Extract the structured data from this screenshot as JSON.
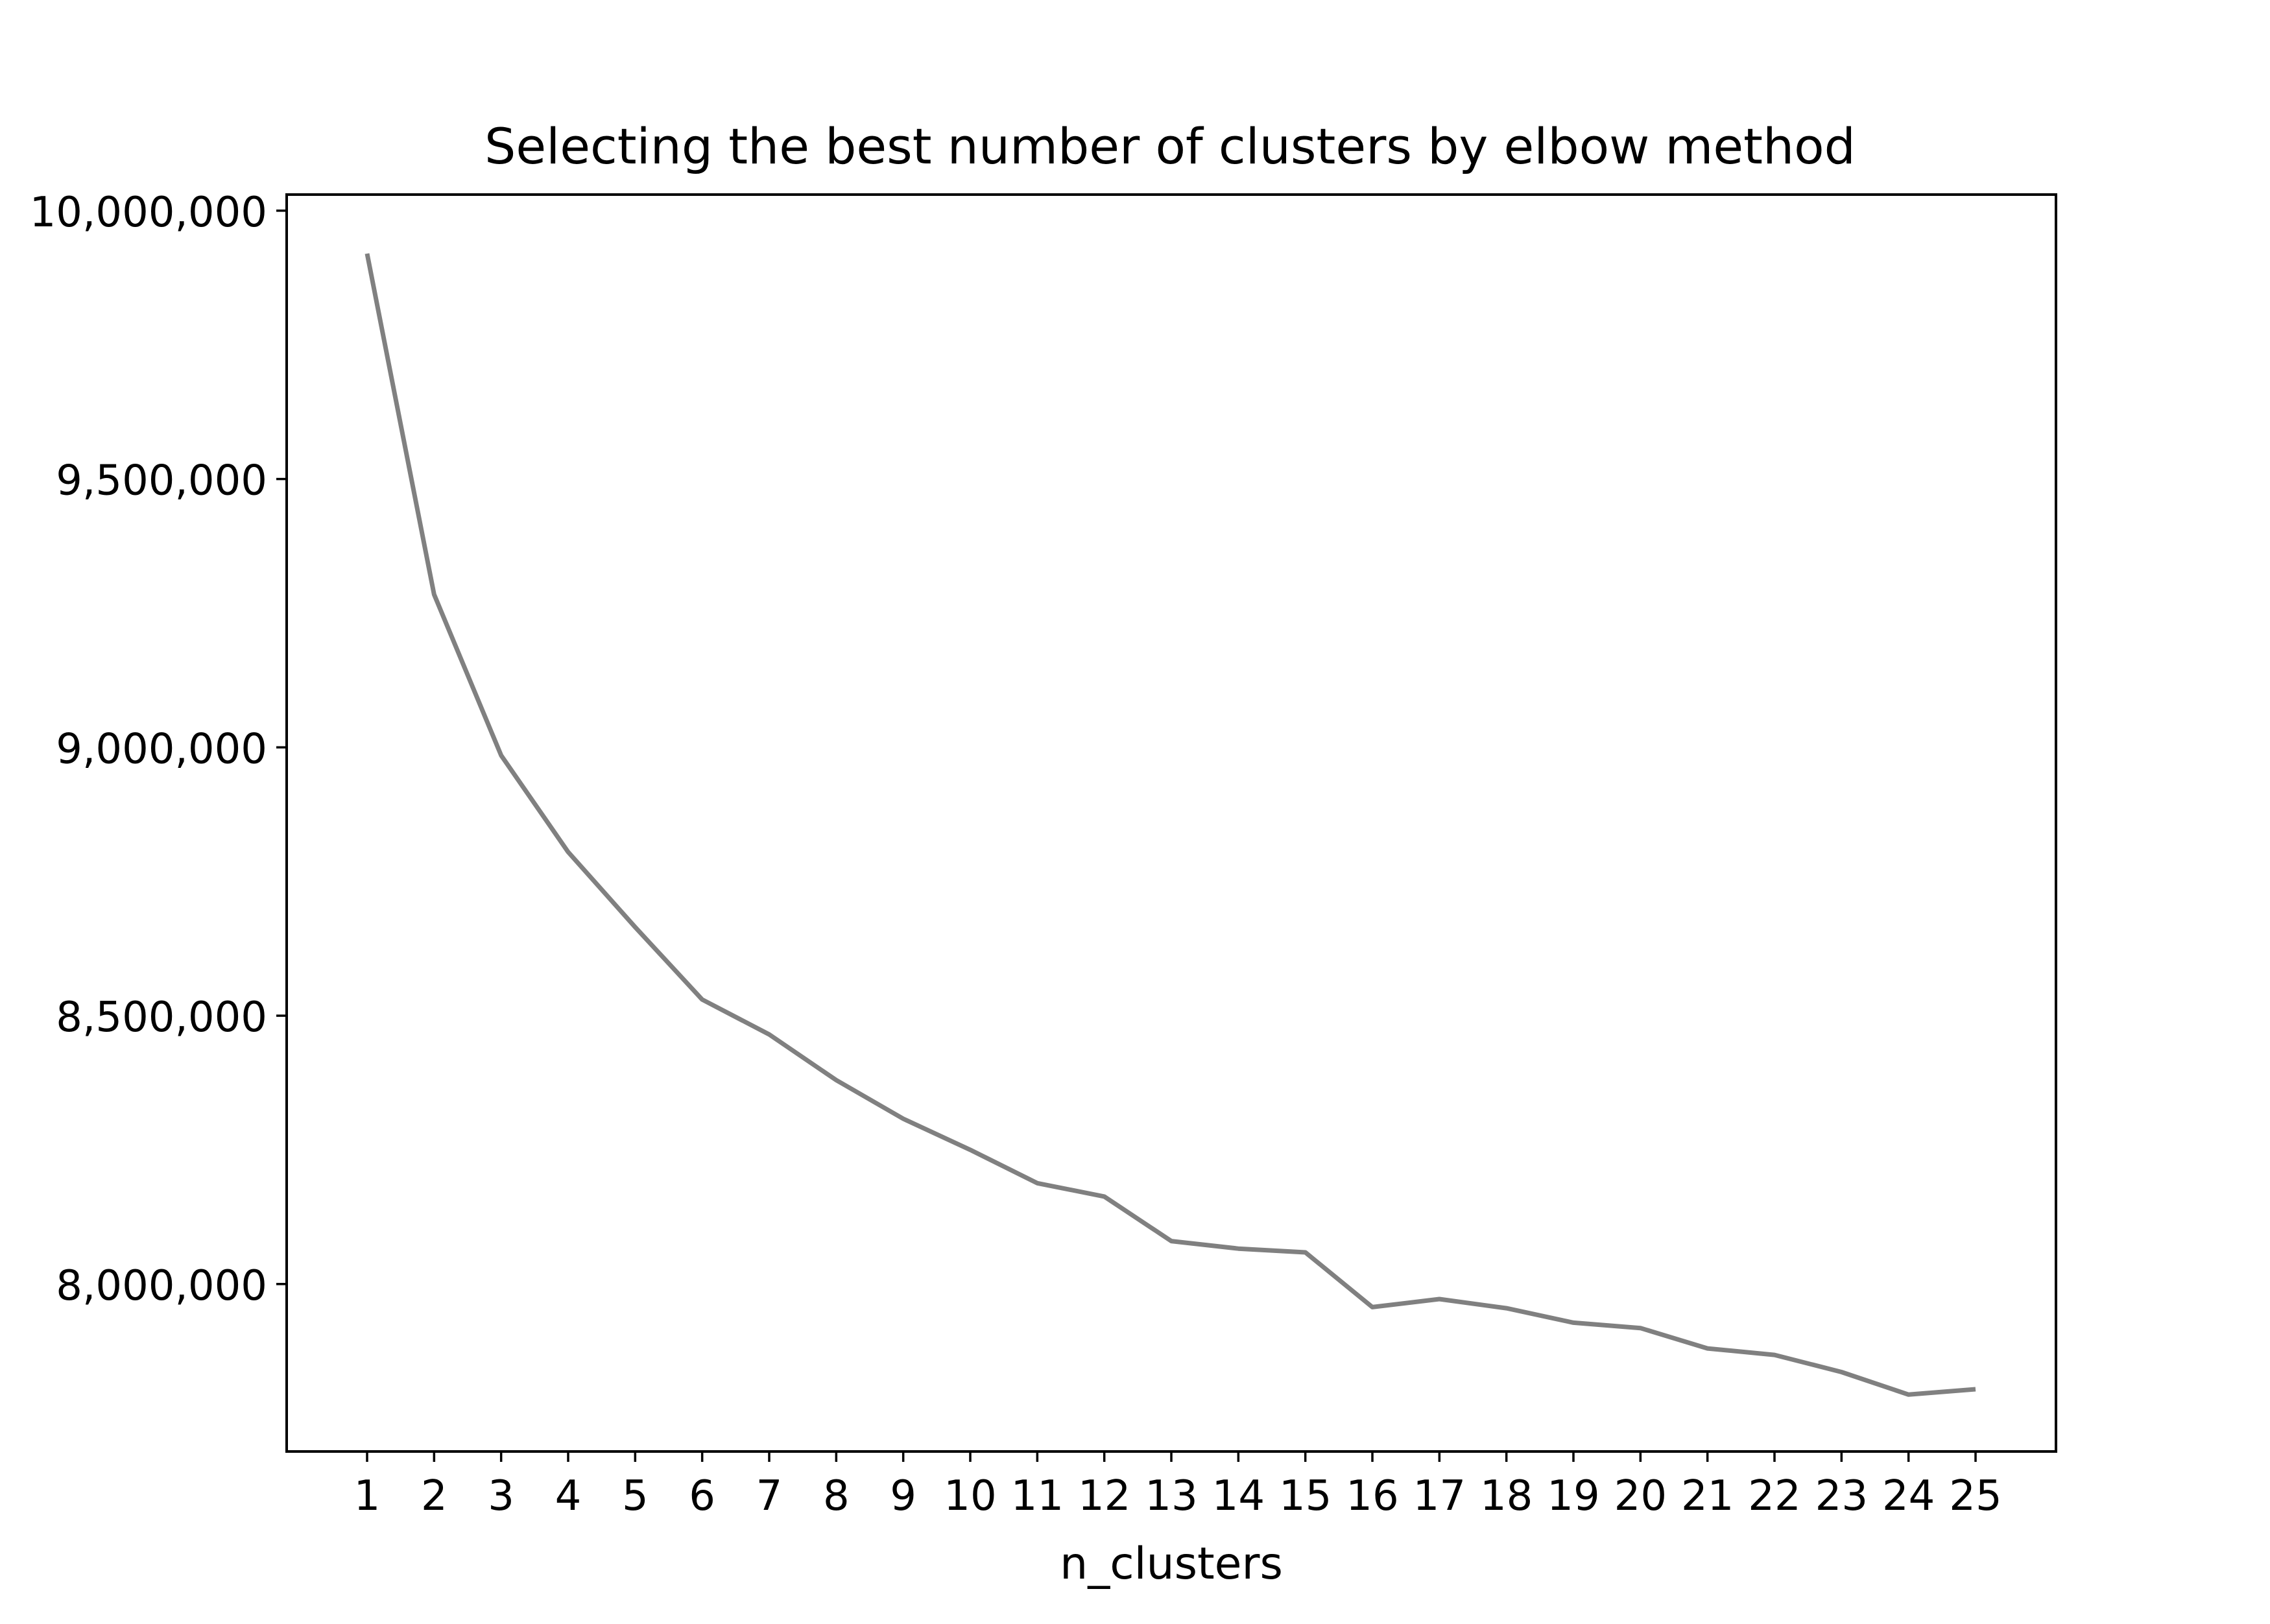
{
  "chart_data": {
    "type": "line",
    "title": "Selecting the best number of clusters by elbow method",
    "xlabel": "n_clusters",
    "ylabel": "",
    "x": [
      1,
      2,
      3,
      4,
      5,
      6,
      7,
      8,
      9,
      10,
      11,
      12,
      13,
      14,
      15,
      16,
      17,
      18,
      19,
      20,
      21,
      22,
      23,
      24,
      25
    ],
    "x_tick_labels": [
      "1",
      "2",
      "3",
      "4",
      "5",
      "6",
      "7",
      "8",
      "9",
      "10",
      "11",
      "12",
      "13",
      "14",
      "15",
      "16",
      "17",
      "18",
      "19",
      "20",
      "21",
      "22",
      "23",
      "24",
      "25"
    ],
    "series": [
      {
        "values": [
          9920000,
          9285000,
          8985000,
          8805000,
          8665000,
          8530000,
          8465000,
          8380000,
          8308000,
          8250000,
          8188000,
          8163000,
          8080000,
          8066000,
          8059000,
          7957000,
          7972000,
          7955000,
          7928000,
          7918000,
          7880000,
          7868000,
          7836000,
          7794000,
          7804000
        ],
        "color": "#808080"
      }
    ],
    "y_ticks": [
      8000000,
      8500000,
      9000000,
      9500000,
      10000000
    ],
    "y_tick_labels": [
      "8,000,000",
      "8,500,000",
      "9,000,000",
      "9,500,000",
      "10,000,000"
    ],
    "xlim": [
      -0.2,
      26.2
    ],
    "ylim": [
      7688000,
      10030000
    ],
    "grid": false,
    "legend": false,
    "line_color": "#808080"
  }
}
